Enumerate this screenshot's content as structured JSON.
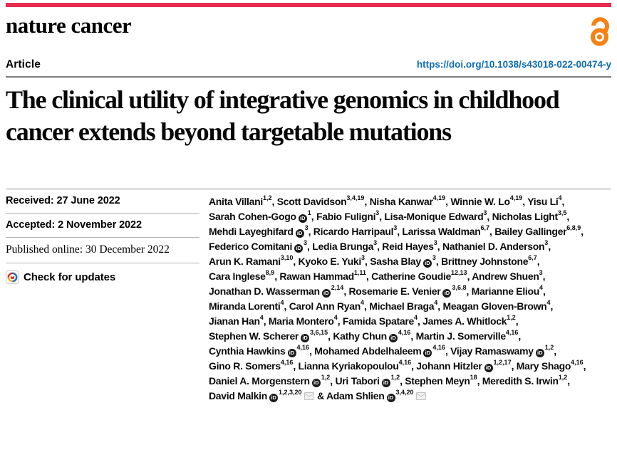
{
  "masthead": {
    "journal": "nature cancer"
  },
  "article": {
    "label": "Article",
    "doi": "https://doi.org/10.1038/s43018-022-00474-y",
    "title": "The clinical utility of integrative genomics in childhood cancer extends beyond targetable mutations"
  },
  "history": {
    "received": "Received: 27 June 2022",
    "accepted": "Accepted: 2 November 2022",
    "published": "Published online: 30 December 2022",
    "check_updates": "Check for updates"
  },
  "icons": {
    "open_access": "open-access-padlock",
    "orcid_text": "iD",
    "crossmark": "crossmark-badge",
    "email": "envelope"
  },
  "colors": {
    "brand_red": "#e62c4f",
    "link_blue": "#0d6cb5",
    "oa_orange": "#f68212"
  },
  "authors": [
    {
      "name": "Anita Villani",
      "sup": "1,2"
    },
    {
      "name": "Scott Davidson",
      "sup": "3,4,19"
    },
    {
      "name": "Nisha Kanwar",
      "sup": "4,19"
    },
    {
      "name": "Winnie W. Lo",
      "sup": "4,19"
    },
    {
      "name": "Yisu Li",
      "sup": "4"
    },
    {
      "name": "Sarah Cohen-Gogo",
      "orcid": true,
      "sup": "1"
    },
    {
      "name": "Fabio Fuligni",
      "sup": "3"
    },
    {
      "name": "Lisa-Monique Edward",
      "sup": "3"
    },
    {
      "name": "Nicholas Light",
      "sup": "3,5"
    },
    {
      "name": "Mehdi Layeghifard",
      "orcid": true,
      "sup": "3"
    },
    {
      "name": "Ricardo Harripaul",
      "sup": "3"
    },
    {
      "name": "Larissa Waldman",
      "sup": "6,7"
    },
    {
      "name": "Bailey Gallinger",
      "sup": "6,8,9"
    },
    {
      "name": "Federico Comitani",
      "orcid": true,
      "sup": "3"
    },
    {
      "name": "Ledia Brunga",
      "sup": "3"
    },
    {
      "name": "Reid Hayes",
      "sup": "3"
    },
    {
      "name": "Nathaniel D. Anderson",
      "sup": "3"
    },
    {
      "name": "Arun K. Ramani",
      "sup": "3,10"
    },
    {
      "name": "Kyoko E. Yuki",
      "sup": "3"
    },
    {
      "name": "Sasha Blay",
      "orcid": true,
      "sup": "3"
    },
    {
      "name": "Brittney Johnstone",
      "sup": "6,7"
    },
    {
      "name": "Cara Inglese",
      "sup": "8,9"
    },
    {
      "name": "Rawan Hammad",
      "sup": "1,11"
    },
    {
      "name": "Catherine Goudie",
      "sup": "12,13"
    },
    {
      "name": "Andrew Shuen",
      "sup": "3"
    },
    {
      "name": "Jonathan D. Wasserman",
      "orcid": true,
      "sup": "2,14"
    },
    {
      "name": "Rosemarie E. Venier",
      "orcid": true,
      "sup": "3,6,8"
    },
    {
      "name": "Marianne Eliou",
      "sup": "4"
    },
    {
      "name": "Miranda Lorenti",
      "sup": "4"
    },
    {
      "name": "Carol Ann Ryan",
      "sup": "4"
    },
    {
      "name": "Michael Braga",
      "sup": "4"
    },
    {
      "name": "Meagan Gloven-Brown",
      "sup": "4"
    },
    {
      "name": "Jianan Han",
      "sup": "4"
    },
    {
      "name": "Maria Montero",
      "sup": "4"
    },
    {
      "name": "Famida Spatare",
      "sup": "4"
    },
    {
      "name": "James A. Whitlock",
      "sup": "1,2"
    },
    {
      "name": "Stephen W. Scherer",
      "orcid": true,
      "sup": "3,6,15"
    },
    {
      "name": "Kathy Chun",
      "orcid": true,
      "sup": "4,16"
    },
    {
      "name": "Martin J. Somerville",
      "sup": "4,16"
    },
    {
      "name": "Cynthia Hawkins",
      "orcid": true,
      "sup": "4,16"
    },
    {
      "name": "Mohamed Abdelhaleem",
      "orcid": true,
      "sup": "4,16"
    },
    {
      "name": "Vijay Ramaswamy",
      "orcid": true,
      "sup": "1,2"
    },
    {
      "name": "Gino R. Somers",
      "sup": "4,16"
    },
    {
      "name": "Lianna Kyriakopoulou",
      "sup": "4,16"
    },
    {
      "name": "Johann Hitzler",
      "orcid": true,
      "sup": "1,2,17"
    },
    {
      "name": "Mary Shago",
      "sup": "4,16"
    },
    {
      "name": "Daniel A. Morgenstern",
      "orcid": true,
      "sup": "1,2"
    },
    {
      "name": "Uri Tabori",
      "orcid": true,
      "sup": "1,2"
    },
    {
      "name": "Stephen Meyn",
      "sup": "18"
    },
    {
      "name": "Meredith S. Irwin",
      "sup": "1,2"
    },
    {
      "name": "David Malkin",
      "orcid": true,
      "sup": "1,2,3,20",
      "mail": true,
      "sep": " & "
    },
    {
      "name": "Adam Shlien",
      "orcid": true,
      "sup": "3,4,20",
      "mail": true,
      "sep": ""
    }
  ]
}
